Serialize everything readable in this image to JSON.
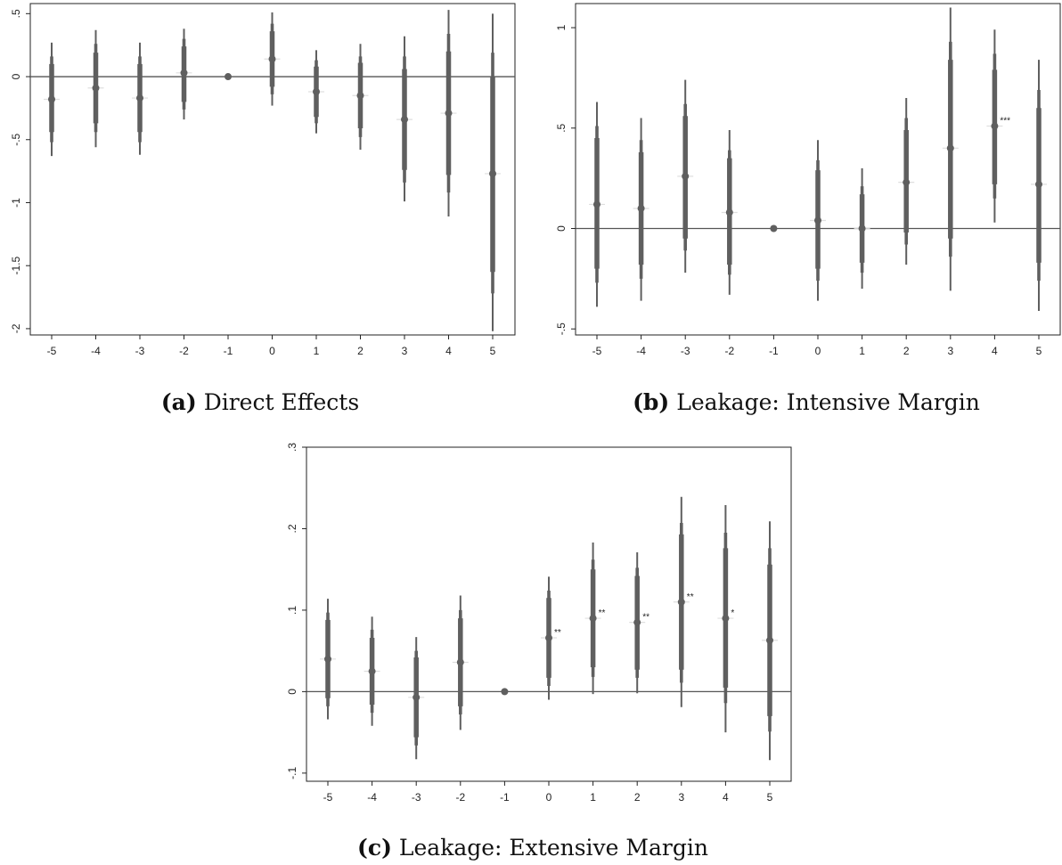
{
  "colors": {
    "mark": "#5f5f5f",
    "axis": "#222222",
    "zero_line": "#555555"
  },
  "chart_data": [
    {
      "type": "scatter",
      "caption_label": "(a)",
      "caption_text": "Direct Effects",
      "x_tick_labels": [
        "-5",
        "-4",
        "-3",
        "-2",
        "-1",
        "0",
        "1",
        "2",
        "3",
        "4",
        "5"
      ],
      "y_ticks": [
        -2,
        -1.5,
        -1,
        -0.5,
        0,
        0.5
      ],
      "y_tick_labels": [
        "-2",
        "-1.5",
        "-1",
        "-.5",
        "0",
        ".5"
      ],
      "ylim": [
        -2.05,
        0.58
      ],
      "grid": false,
      "x": [
        -5,
        -4,
        -3,
        -2,
        -1,
        0,
        1,
        2,
        3,
        4,
        5
      ],
      "estimates": [
        -0.18,
        -0.09,
        -0.17,
        0.03,
        0,
        0.14,
        -0.12,
        -0.15,
        -0.34,
        -0.29,
        -0.77
      ],
      "ci_outer_low": [
        -0.63,
        -0.56,
        -0.62,
        -0.34,
        0,
        -0.23,
        -0.45,
        -0.58,
        -0.99,
        -1.11,
        -2.02
      ],
      "ci_outer_high": [
        0.27,
        0.37,
        0.27,
        0.38,
        0,
        0.51,
        0.21,
        0.26,
        0.32,
        0.53,
        0.5
      ],
      "ci_mid_low": [
        -0.52,
        -0.44,
        -0.52,
        -0.26,
        0,
        -0.14,
        -0.37,
        -0.48,
        -0.84,
        -0.92,
        -1.72
      ],
      "ci_mid_high": [
        0.16,
        0.26,
        0.16,
        0.3,
        0,
        0.42,
        0.13,
        0.16,
        0.16,
        0.34,
        0.19
      ],
      "ci_inner_low": [
        -0.44,
        -0.37,
        -0.44,
        -0.2,
        0,
        -0.08,
        -0.32,
        -0.41,
        -0.74,
        -0.78,
        -1.55
      ],
      "ci_inner_high": [
        0.1,
        0.19,
        0.1,
        0.24,
        0,
        0.36,
        0.08,
        0.11,
        0.06,
        0.2,
        0.0
      ],
      "stars": [
        "",
        "",
        "",
        "",
        "",
        "",
        "",
        "",
        "",
        "",
        ""
      ]
    },
    {
      "type": "scatter",
      "caption_label": "(b)",
      "caption_text": "Leakage: Intensive Margin",
      "x_tick_labels": [
        "-5",
        "-4",
        "-3",
        "-2",
        "-1",
        "0",
        "1",
        "2",
        "3",
        "4",
        "5"
      ],
      "y_ticks": [
        -0.5,
        0,
        0.5,
        1
      ],
      "y_tick_labels": [
        "-.5",
        "0",
        ".5",
        "1"
      ],
      "ylim": [
        -0.53,
        1.12
      ],
      "grid": false,
      "x": [
        -5,
        -4,
        -3,
        -2,
        -1,
        0,
        1,
        2,
        3,
        4,
        5
      ],
      "estimates": [
        0.12,
        0.1,
        0.26,
        0.08,
        0,
        0.04,
        0,
        0.23,
        0.4,
        0.51,
        0.22
      ],
      "ci_outer_low": [
        -0.39,
        -0.36,
        -0.22,
        -0.33,
        0,
        -0.36,
        -0.3,
        -0.18,
        -0.31,
        0.03,
        -0.41
      ],
      "ci_outer_high": [
        0.63,
        0.55,
        0.74,
        0.49,
        0,
        0.44,
        0.3,
        0.65,
        1.1,
        0.99,
        0.84
      ],
      "ci_mid_low": [
        -0.27,
        -0.25,
        -0.11,
        -0.23,
        0,
        -0.26,
        -0.22,
        -0.08,
        -0.14,
        0.15,
        -0.26
      ],
      "ci_mid_high": [
        0.51,
        0.44,
        0.62,
        0.39,
        0,
        0.34,
        0.21,
        0.55,
        0.93,
        0.87,
        0.69
      ],
      "ci_inner_low": [
        -0.2,
        -0.18,
        -0.05,
        -0.18,
        0,
        -0.2,
        -0.17,
        -0.02,
        -0.05,
        0.22,
        -0.17
      ],
      "ci_inner_high": [
        0.45,
        0.38,
        0.56,
        0.35,
        0,
        0.29,
        0.17,
        0.49,
        0.84,
        0.79,
        0.6
      ],
      "stars": [
        "",
        "",
        "",
        "",
        "",
        "",
        "",
        "",
        "",
        "***",
        ""
      ]
    },
    {
      "type": "scatter",
      "caption_label": "(c)",
      "caption_text": "Leakage: Extensive Margin",
      "x_tick_labels": [
        "-5",
        "-4",
        "-3",
        "-2",
        "-1",
        "0",
        "1",
        "2",
        "3",
        "4",
        "5"
      ],
      "y_ticks": [
        -0.1,
        0,
        0.1,
        0.2,
        0.3
      ],
      "y_tick_labels": [
        "-.1",
        "0",
        ".1",
        ".2",
        ".3"
      ],
      "ylim": [
        -0.11,
        0.3
      ],
      "grid": false,
      "x": [
        -5,
        -4,
        -3,
        -2,
        -1,
        0,
        1,
        2,
        3,
        4,
        5
      ],
      "estimates": [
        0.04,
        0.025,
        -0.007,
        0.036,
        0,
        0.066,
        0.09,
        0.085,
        0.11,
        0.09,
        0.063
      ],
      "ci_outer_low": [
        -0.034,
        -0.042,
        -0.083,
        -0.047,
        0,
        -0.01,
        -0.003,
        -0.002,
        -0.019,
        -0.05,
        -0.084
      ],
      "ci_outer_high": [
        0.114,
        0.092,
        0.067,
        0.118,
        0,
        0.141,
        0.183,
        0.171,
        0.239,
        0.229,
        0.209
      ],
      "ci_mid_low": [
        -0.018,
        -0.026,
        -0.066,
        -0.028,
        0,
        0.007,
        0.018,
        0.017,
        0.011,
        -0.014,
        -0.049
      ],
      "ci_mid_high": [
        0.097,
        0.076,
        0.05,
        0.1,
        0,
        0.124,
        0.162,
        0.152,
        0.207,
        0.195,
        0.176
      ],
      "ci_inner_low": [
        -0.008,
        -0.016,
        -0.056,
        -0.018,
        0,
        0.017,
        0.03,
        0.027,
        0.027,
        0.005,
        -0.03
      ],
      "ci_inner_high": [
        0.088,
        0.066,
        0.042,
        0.09,
        0,
        0.115,
        0.15,
        0.142,
        0.193,
        0.176,
        0.156
      ],
      "stars": [
        "",
        "",
        "",
        "",
        "",
        "**",
        "**",
        "**",
        "**",
        "*",
        ""
      ]
    }
  ]
}
